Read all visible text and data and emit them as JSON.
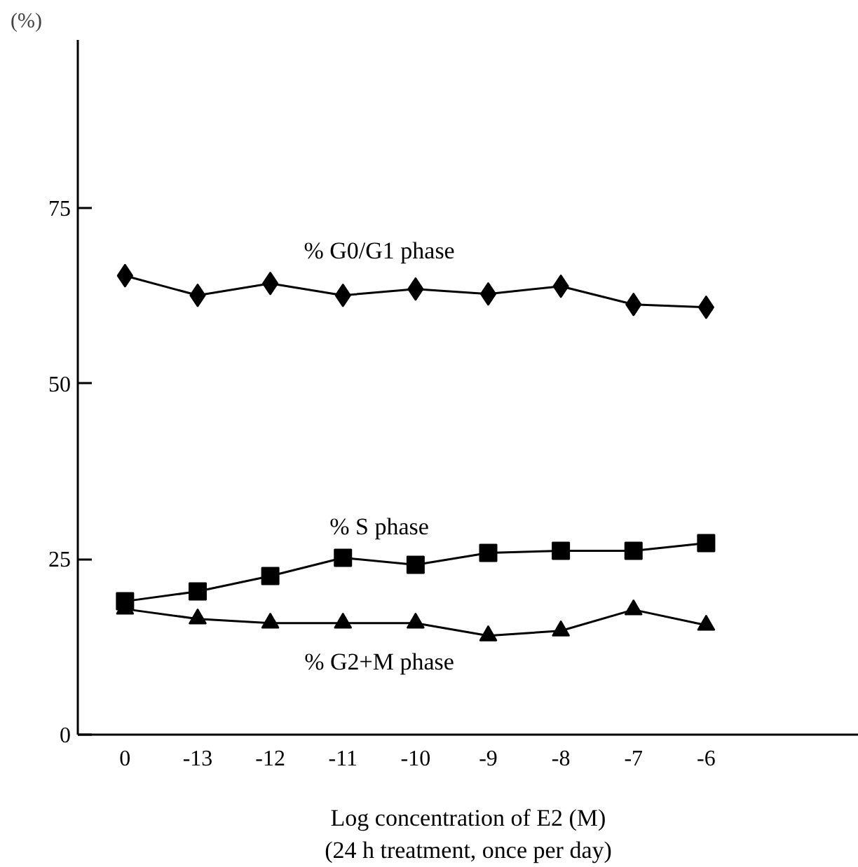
{
  "chart_data": {
    "type": "line",
    "ylabel": "(%)",
    "xlabel": "Log concentration of E2 (M)\n(24 h treatment, once per day)",
    "categories": [
      "0",
      "-13",
      "-12",
      "-11",
      "-10",
      "-9",
      "-8",
      "-7",
      "-6"
    ],
    "ylim": [
      0,
      99
    ],
    "yticks": [
      0,
      25,
      50,
      75
    ],
    "grid": false,
    "series": [
      {
        "name": "% G0/G1 phase",
        "color": "#000000",
        "marker": "diamond",
        "values": [
          65.4,
          62.6,
          64.3,
          62.6,
          63.5,
          62.8,
          63.9,
          61.3,
          60.9
        ]
      },
      {
        "name": "% S phase",
        "color": "#000000",
        "marker": "square",
        "values": [
          19.0,
          20.4,
          22.6,
          25.2,
          24.2,
          25.9,
          26.2,
          26.2,
          27.3
        ]
      },
      {
        "name": "% G2+M phase",
        "color": "#000000",
        "marker": "triangle",
        "values": [
          17.9,
          16.5,
          15.9,
          15.9,
          15.9,
          14.1,
          14.8,
          17.8,
          15.6
        ]
      }
    ]
  }
}
